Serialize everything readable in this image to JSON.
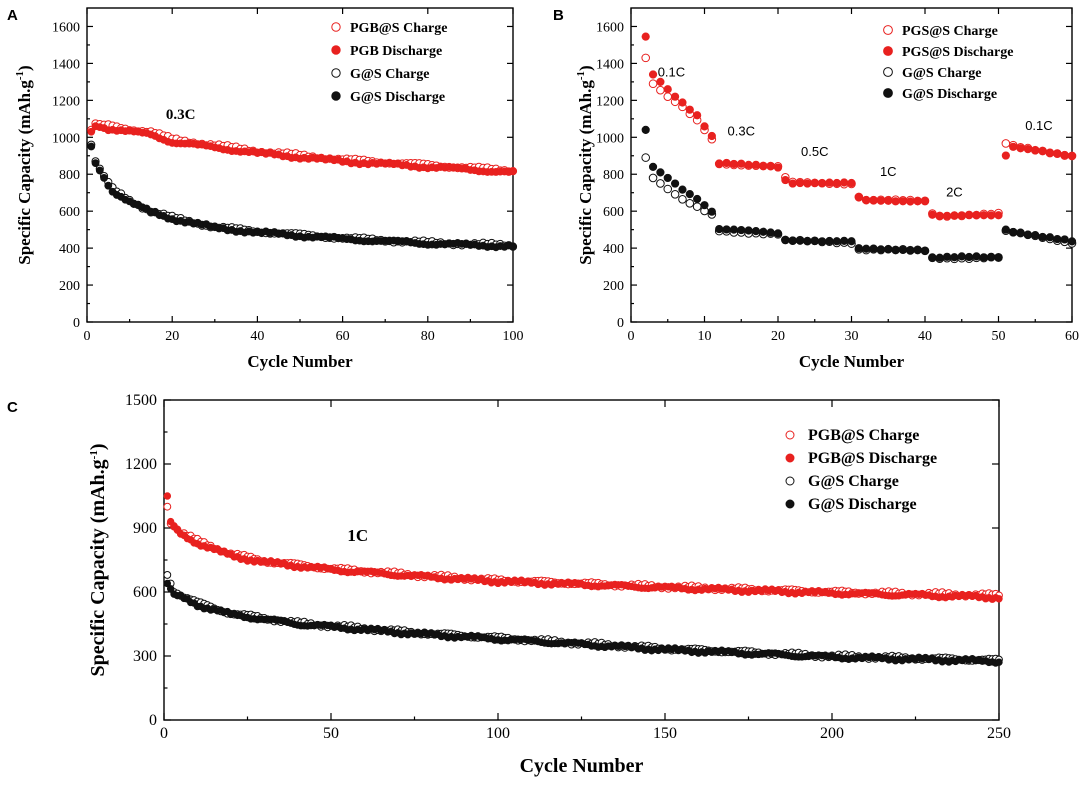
{
  "colors": {
    "red": "#e8211f",
    "black": "#111111",
    "axis": "#000000"
  },
  "chart_data": [
    {
      "id": "A",
      "type": "scatter",
      "panel_label": "A",
      "xlabel": "Cycle Number",
      "ylabel_main": "Specific Capacity (mAh.g",
      "ylabel_sup": "-1",
      "ylabel_close": ")",
      "xlim": [
        0,
        100
      ],
      "ylim": [
        0,
        1700
      ],
      "xticks": [
        0,
        20,
        40,
        60,
        80,
        100
      ],
      "xtick_labels": [
        "0",
        "20",
        "40",
        "60",
        "80",
        "100"
      ],
      "yticks": [
        0,
        200,
        400,
        600,
        800,
        1000,
        1200,
        1400,
        1600
      ],
      "ytick_labels": [
        "0",
        "200",
        "400",
        "600",
        "800",
        "1000",
        "1200",
        "1400",
        "1600"
      ],
      "legend_position": "top-right",
      "rate_annotations": [
        {
          "text": "0.3C",
          "x": 22,
          "y": 1100
        }
      ],
      "series": [
        {
          "name": "PGB@S Charge",
          "color": "#e8211f",
          "filled": false,
          "profile": {
            "x_end": 100,
            "knots": [
              [
                1,
                1040
              ],
              [
                2,
                1075
              ],
              [
                4,
                1068
              ],
              [
                10,
                1045
              ],
              [
                15,
                1030
              ],
              [
                20,
                990
              ],
              [
                40,
                925
              ],
              [
                60,
                880
              ],
              [
                80,
                850
              ],
              [
                100,
                820
              ]
            ]
          }
        },
        {
          "name": "PGB Discharge",
          "color": "#e8211f",
          "filled": true,
          "profile": {
            "x_end": 100,
            "knots": [
              [
                1,
                1030
              ],
              [
                2,
                1060
              ],
              [
                4,
                1050
              ],
              [
                10,
                1030
              ],
              [
                15,
                1015
              ],
              [
                20,
                975
              ],
              [
                40,
                915
              ],
              [
                60,
                870
              ],
              [
                80,
                840
              ],
              [
                100,
                810
              ]
            ]
          }
        },
        {
          "name": "G@S Charge",
          "color": "#111111",
          "filled": false,
          "profile": {
            "x_end": 100,
            "knots": [
              [
                1,
                960
              ],
              [
                2,
                870
              ],
              [
                4,
                790
              ],
              [
                6,
                720
              ],
              [
                10,
                660
              ],
              [
                15,
                600
              ],
              [
                20,
                565
              ],
              [
                30,
                515
              ],
              [
                40,
                490
              ],
              [
                60,
                455
              ],
              [
                80,
                430
              ],
              [
                100,
                415
              ]
            ]
          }
        },
        {
          "name": "G@S Discharge",
          "color": "#111111",
          "filled": true,
          "profile": {
            "x_end": 100,
            "knots": [
              [
                1,
                950
              ],
              [
                2,
                860
              ],
              [
                4,
                780
              ],
              [
                6,
                710
              ],
              [
                10,
                650
              ],
              [
                15,
                595
              ],
              [
                20,
                560
              ],
              [
                30,
                510
              ],
              [
                40,
                485
              ],
              [
                60,
                450
              ],
              [
                80,
                425
              ],
              [
                100,
                410
              ]
            ]
          }
        }
      ]
    },
    {
      "id": "B",
      "type": "scatter",
      "panel_label": "B",
      "xlabel": "Cycle Number",
      "ylabel_main": "Specific Capacity (mAh.g",
      "ylabel_sup": "-1",
      "ylabel_close": ")",
      "xlim": [
        0,
        60
      ],
      "ylim": [
        0,
        1700
      ],
      "xticks": [
        0,
        10,
        20,
        30,
        40,
        50,
        60
      ],
      "xtick_labels": [
        "0",
        "10",
        "20",
        "30",
        "40",
        "50",
        "60"
      ],
      "yticks": [
        0,
        200,
        400,
        600,
        800,
        1000,
        1200,
        1400,
        1600
      ],
      "ytick_labels": [
        "0",
        "200",
        "400",
        "600",
        "800",
        "1000",
        "1200",
        "1400",
        "1600"
      ],
      "legend_position": "top-right",
      "rate_annotations": [
        {
          "text": "0.1C",
          "x": 5.5,
          "y": 1330
        },
        {
          "text": "0.3C",
          "x": 15,
          "y": 1010
        },
        {
          "text": "0.5C",
          "x": 25,
          "y": 900
        },
        {
          "text": "1C",
          "x": 35,
          "y": 790
        },
        {
          "text": "2C",
          "x": 44,
          "y": 680
        },
        {
          "text": "0.1C",
          "x": 55.5,
          "y": 1040
        }
      ],
      "series": [
        {
          "name": "PGS@S Charge",
          "color": "#e8211f",
          "filled": false,
          "profile": {
            "x_end": 60,
            "knots": [
              [
                2,
                1430
              ],
              [
                3,
                1290
              ],
              [
                5,
                1220
              ],
              [
                7,
                1160
              ],
              [
                9,
                1090
              ],
              [
                11,
                990
              ],
              [
                11.5,
                860
              ],
              [
                20,
                840
              ],
              [
                21,
                780
              ],
              [
                21.5,
                755
              ],
              [
                30,
                750
              ],
              [
                31,
                680
              ],
              [
                31.5,
                660
              ],
              [
                40,
                655
              ],
              [
                41,
                590
              ],
              [
                41.5,
                575
              ],
              [
                50,
                585
              ],
              [
                51,
                965
              ],
              [
                51.5,
                955
              ],
              [
                60,
                900
              ]
            ]
          }
        },
        {
          "name": "PGS@S Discharge",
          "color": "#e8211f",
          "filled": true,
          "profile": {
            "x_end": 60,
            "knots": [
              [
                2,
                1545
              ],
              [
                3,
                1340
              ],
              [
                5,
                1260
              ],
              [
                7,
                1190
              ],
              [
                9,
                1120
              ],
              [
                11,
                1005
              ],
              [
                11.5,
                860
              ],
              [
                20,
                840
              ],
              [
                21,
                770
              ],
              [
                21.5,
                755
              ],
              [
                30,
                750
              ],
              [
                31,
                670
              ],
              [
                31.5,
                660
              ],
              [
                40,
                655
              ],
              [
                41,
                580
              ],
              [
                41.5,
                570
              ],
              [
                50,
                580
              ],
              [
                51,
                905
              ],
              [
                51.5,
                955
              ],
              [
                60,
                895
              ]
            ]
          }
        },
        {
          "name": "G@S Charge",
          "color": "#111111",
          "filled": false,
          "profile": {
            "x_end": 60,
            "knots": [
              [
                2,
                890
              ],
              [
                3,
                780
              ],
              [
                5,
                720
              ],
              [
                7,
                660
              ],
              [
                9,
                620
              ],
              [
                11,
                580
              ],
              [
                11.5,
                495
              ],
              [
                20,
                475
              ],
              [
                21,
                440
              ],
              [
                30,
                430
              ],
              [
                31,
                395
              ],
              [
                40,
                385
              ],
              [
                41,
                345
              ],
              [
                50,
                350
              ],
              [
                51,
                490
              ],
              [
                60,
                430
              ]
            ]
          }
        },
        {
          "name": "G@S Discharge",
          "color": "#111111",
          "filled": true,
          "profile": {
            "x_end": 60,
            "knots": [
              [
                2,
                1040
              ],
              [
                3,
                840
              ],
              [
                5,
                780
              ],
              [
                7,
                720
              ],
              [
                9,
                670
              ],
              [
                11,
                600
              ],
              [
                11.5,
                505
              ],
              [
                20,
                480
              ],
              [
                21,
                445
              ],
              [
                30,
                435
              ],
              [
                31,
                395
              ],
              [
                40,
                390
              ],
              [
                41,
                350
              ],
              [
                50,
                350
              ],
              [
                51,
                500
              ],
              [
                60,
                435
              ]
            ]
          }
        }
      ]
    },
    {
      "id": "C",
      "type": "scatter",
      "panel_label": "C",
      "xlabel": "Cycle Number",
      "ylabel_main": "Specific Capacity (mAh.g",
      "ylabel_sup": "-1",
      "ylabel_close": ")",
      "xlim": [
        0,
        250
      ],
      "ylim": [
        0,
        1500
      ],
      "xticks": [
        0,
        50,
        100,
        150,
        200,
        250
      ],
      "xtick_labels": [
        "0",
        "50",
        "100",
        "150",
        "200",
        "250"
      ],
      "yticks": [
        0,
        300,
        600,
        900,
        1200,
        1500
      ],
      "ytick_labels": [
        "0",
        "300",
        "600",
        "900",
        "1200",
        "1500"
      ],
      "legend_position": "top-right",
      "rate_annotations": [
        {
          "text": "1C",
          "x": 58,
          "y": 840
        }
      ],
      "series": [
        {
          "name": "PGB@S Charge",
          "color": "#e8211f",
          "filled": false,
          "profile": {
            "x_end": 250,
            "knots": [
              [
                1,
                1000
              ],
              [
                2,
                920
              ],
              [
                5,
                880
              ],
              [
                10,
                840
              ],
              [
                20,
                780
              ],
              [
                30,
                745
              ],
              [
                50,
                710
              ],
              [
                75,
                680
              ],
              [
                100,
                655
              ],
              [
                150,
                625
              ],
              [
                200,
                600
              ],
              [
                250,
                585
              ]
            ]
          }
        },
        {
          "name": "PGB@S Discharge",
          "color": "#e8211f",
          "filled": true,
          "profile": {
            "x_end": 250,
            "knots": [
              [
                1,
                1050
              ],
              [
                2,
                930
              ],
              [
                5,
                870
              ],
              [
                10,
                830
              ],
              [
                20,
                770
              ],
              [
                30,
                740
              ],
              [
                50,
                705
              ],
              [
                75,
                675
              ],
              [
                100,
                650
              ],
              [
                150,
                620
              ],
              [
                200,
                595
              ],
              [
                250,
                575
              ]
            ]
          }
        },
        {
          "name": "G@S Charge",
          "color": "#111111",
          "filled": false,
          "profile": {
            "x_end": 250,
            "knots": [
              [
                1,
                680
              ],
              [
                3,
                600
              ],
              [
                10,
                550
              ],
              [
                20,
                500
              ],
              [
                40,
                455
              ],
              [
                75,
                410
              ],
              [
                100,
                385
              ],
              [
                150,
                335
              ],
              [
                200,
                300
              ],
              [
                250,
                280
              ]
            ]
          }
        },
        {
          "name": "G@S Discharge",
          "color": "#111111",
          "filled": true,
          "profile": {
            "x_end": 250,
            "knots": [
              [
                1,
                640
              ],
              [
                3,
                590
              ],
              [
                10,
                540
              ],
              [
                20,
                495
              ],
              [
                40,
                450
              ],
              [
                75,
                405
              ],
              [
                100,
                380
              ],
              [
                150,
                330
              ],
              [
                200,
                295
              ],
              [
                250,
                275
              ]
            ]
          }
        }
      ]
    }
  ]
}
